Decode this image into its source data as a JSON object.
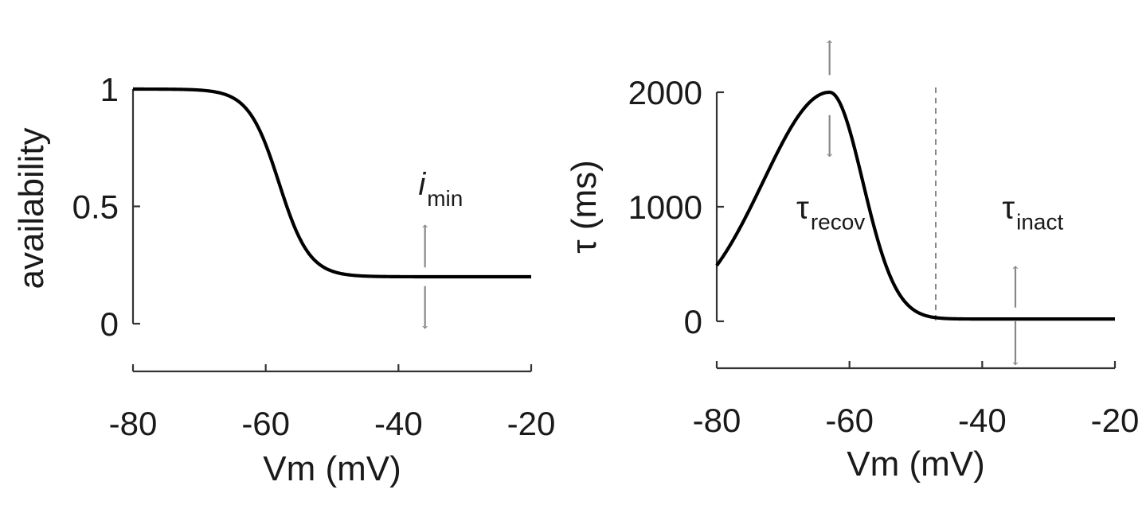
{
  "chart_data": [
    {
      "type": "line",
      "xlabel": "Vm (mV)",
      "ylabel": "availability",
      "xlim": [
        -80,
        -20
      ],
      "ylim": [
        -0.2,
        1
      ],
      "xticks": [
        -80,
        -60,
        -40,
        -20
      ],
      "xtick_labels": [
        "-80",
        "-60",
        "-40",
        "-20"
      ],
      "yticks": [
        0,
        0.5,
        1
      ],
      "ytick_labels": [
        "0",
        "0.5",
        "1"
      ],
      "grid": false,
      "curve": {
        "type": "sigmoid",
        "high": 1,
        "low": 0.2,
        "v_half": -58,
        "slope": 2.3
      },
      "series": [
        {
          "x": [
            -80,
            -75,
            -70,
            -68,
            -66,
            -64,
            -62,
            -60,
            -58,
            -56,
            -54,
            -52,
            -50,
            -48,
            -45,
            -40,
            -35,
            -30,
            -25,
            -20
          ],
          "y": [
            1.0,
            1.0,
            0.997,
            0.994,
            0.985,
            0.966,
            0.925,
            0.85,
            0.74,
            0.6,
            0.48,
            0.36,
            0.27,
            0.225,
            0.205,
            0.2,
            0.2,
            0.2,
            0.2,
            0.2
          ]
        }
      ],
      "annotations": [
        {
          "text_main": "i",
          "text_sub": "min",
          "x": -37,
          "y": 0.55
        },
        {
          "arrow": "up",
          "x": -36,
          "y_from": 0.24,
          "y_to": 0.42
        },
        {
          "arrow": "down",
          "x": -36,
          "y_from": 0.16,
          "y_to": -0.02
        }
      ],
      "colors": {
        "line": "#000000",
        "arrow": "#888888",
        "axis": "#333333"
      }
    },
    {
      "type": "line",
      "xlabel": "Vm (mV)",
      "ylabel": "τ (ms)",
      "xlim": [
        -80,
        -20
      ],
      "ylim": [
        -400,
        2000
      ],
      "xticks": [
        -80,
        -60,
        -40,
        -20
      ],
      "xtick_labels": [
        "-80",
        "-60",
        "-40",
        "-20"
      ],
      "yticks": [
        0,
        1000,
        2000
      ],
      "ytick_labels": [
        "0",
        "1000",
        "2000"
      ],
      "grid": false,
      "vline_x": -47,
      "curve": {
        "type": "bell",
        "peak": 2000,
        "peak_x": -63,
        "sigma_left": 10,
        "sigma_right": 5,
        "baseline": 20
      },
      "series": [
        {
          "x": [
            -80,
            -75,
            -70,
            -66,
            -63,
            -60,
            -57,
            -54,
            -51,
            -48,
            -46,
            -40,
            -30,
            -20
          ],
          "y": [
            550,
            1000,
            1500,
            1850,
            2000,
            1850,
            1400,
            900,
            400,
            100,
            20,
            20,
            20,
            20
          ]
        }
      ],
      "annotations": [
        {
          "text_main": "τ",
          "text_sub": "recov",
          "x": -68,
          "y": 900
        },
        {
          "text_main": "τ",
          "text_sub": "inact",
          "x": -37,
          "y": 900
        },
        {
          "arrow": "up",
          "x": -63,
          "y_from": 2150,
          "y_to": 2450
        },
        {
          "arrow": "down",
          "x": -63,
          "y_from": 1800,
          "y_to": 1440
        },
        {
          "arrow": "up",
          "x": -35,
          "y_from": 120,
          "y_to": 480
        },
        {
          "arrow": "down",
          "x": -35,
          "y_from": 0,
          "y_to": -380
        }
      ],
      "colors": {
        "line": "#000000",
        "arrow": "#888888",
        "axis": "#333333",
        "vline": "#888888"
      }
    }
  ]
}
